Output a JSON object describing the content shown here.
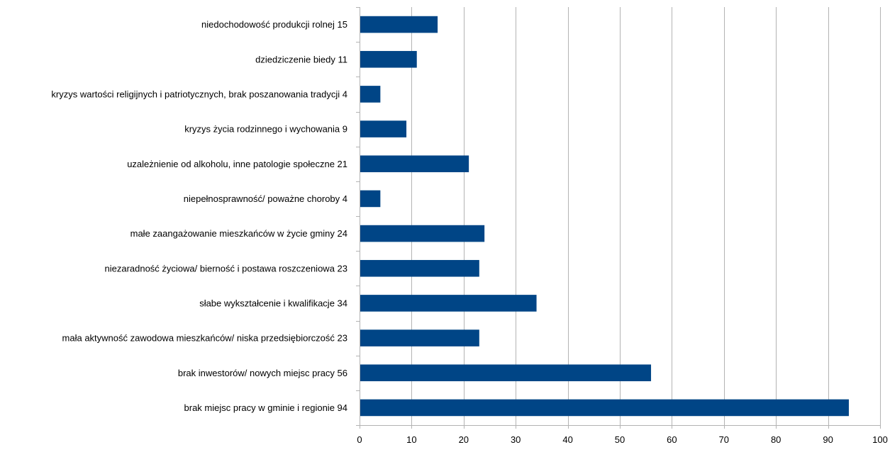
{
  "chart_data": {
    "type": "bar",
    "orientation": "horizontal",
    "categories": [
      "niedochodowość produkcji rolnej 15",
      "dziedziczenie biedy 11",
      "kryzys wartości religijnych i patriotycznych, brak poszanowania tradycji 4",
      "kryzys życia rodzinnego i wychowania 9",
      "uzależnienie od alkoholu,  inne patologie społeczne 21",
      "niepełnosprawność/ poważne choroby 4",
      "małe zaangażowanie mieszkańców w życie gminy 24",
      "niezaradność życiowa/ bierność i postawa roszczeniowa 23",
      "słabe wykształcenie i kwalifikacje 34",
      "mała aktywność zawodowa mieszkańców/ niska przedsiębiorczość 23",
      "brak inwestorów/ nowych miejsc pracy 56",
      "brak miejsc pracy w gminie i regionie 94"
    ],
    "values": [
      15,
      11,
      4,
      9,
      21,
      4,
      24,
      23,
      34,
      23,
      56,
      94
    ],
    "xlim": [
      0,
      100
    ],
    "xticks": [
      "0",
      "10",
      "20",
      "30",
      "40",
      "50",
      "60",
      "70",
      "80",
      "90",
      "100"
    ],
    "grid": "vertical",
    "legend": "none",
    "bar_color": "#004586"
  }
}
